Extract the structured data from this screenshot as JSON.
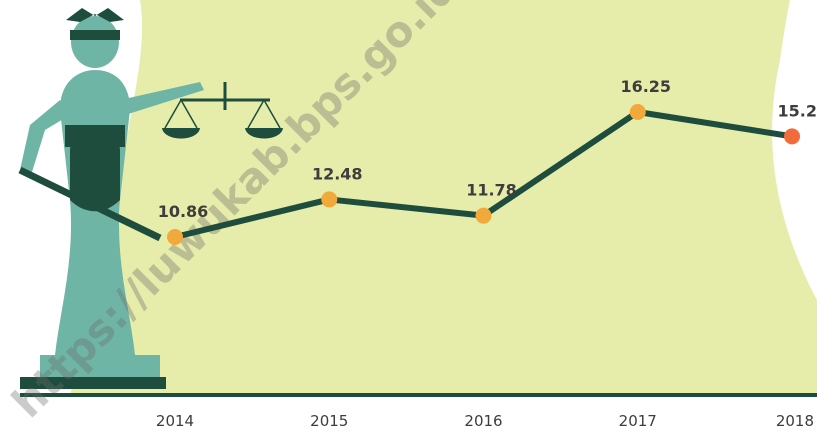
{
  "chart_data": {
    "type": "line",
    "categories": [
      "2014",
      "2015",
      "2016",
      "2017",
      "2018"
    ],
    "values": [
      10.86,
      12.48,
      11.78,
      16.25,
      15.2
    ],
    "color": "#1e4d3e",
    "point_colors": [
      "#f2a93b",
      "#f2a93b",
      "#f2a93b",
      "#f2a93b",
      "#f26b3a"
    ],
    "watermark": "https://luwukab.bps.go.id"
  }
}
